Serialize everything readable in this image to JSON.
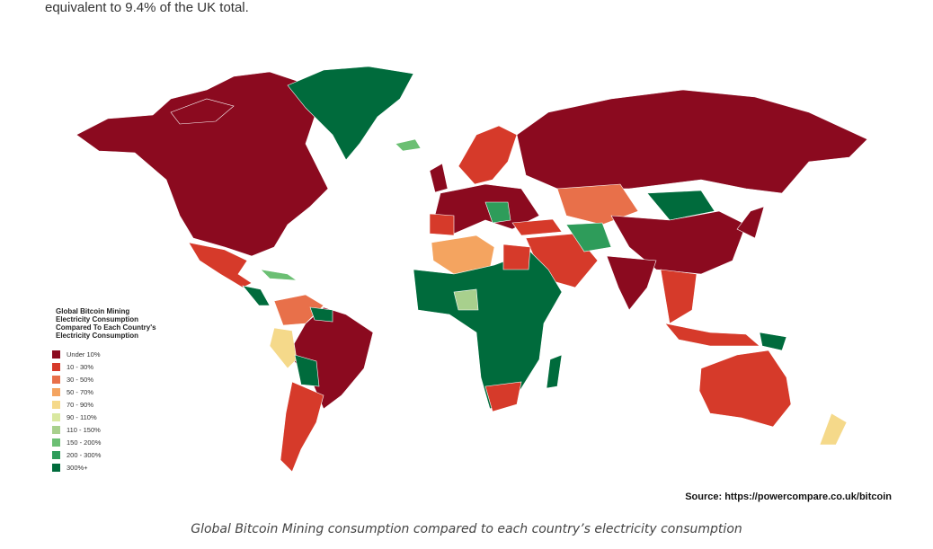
{
  "intro_text": "equivalent to 9.4% of the UK total.",
  "map": {
    "legend": {
      "title_lines": [
        "Global Bitcoin Mining",
        "Electricity Consumption",
        "Compared To Each Country's",
        "Electricity Consumption"
      ],
      "items": [
        {
          "label": "Under 10%",
          "color": "#8b0a1f"
        },
        {
          "label": "10 - 30%",
          "color": "#d63a2a"
        },
        {
          "label": "30 - 50%",
          "color": "#e8704a"
        },
        {
          "label": "50 - 70%",
          "color": "#f4a460"
        },
        {
          "label": "70 - 90%",
          "color": "#f5d98a"
        },
        {
          "label": "90 - 110%",
          "color": "#d9e8a0"
        },
        {
          "label": "110 - 150%",
          "color": "#a8d08d"
        },
        {
          "label": "150 - 200%",
          "color": "#6bbf73"
        },
        {
          "label": "200 - 300%",
          "color": "#2e9c5a"
        },
        {
          "label": "300%+",
          "color": "#006b3c"
        }
      ]
    },
    "source": "Source: https://powercompare.co.uk/bitcoin"
  },
  "caption": "Global Bitcoin Mining consumption compared to each country’s electricity consumption"
}
